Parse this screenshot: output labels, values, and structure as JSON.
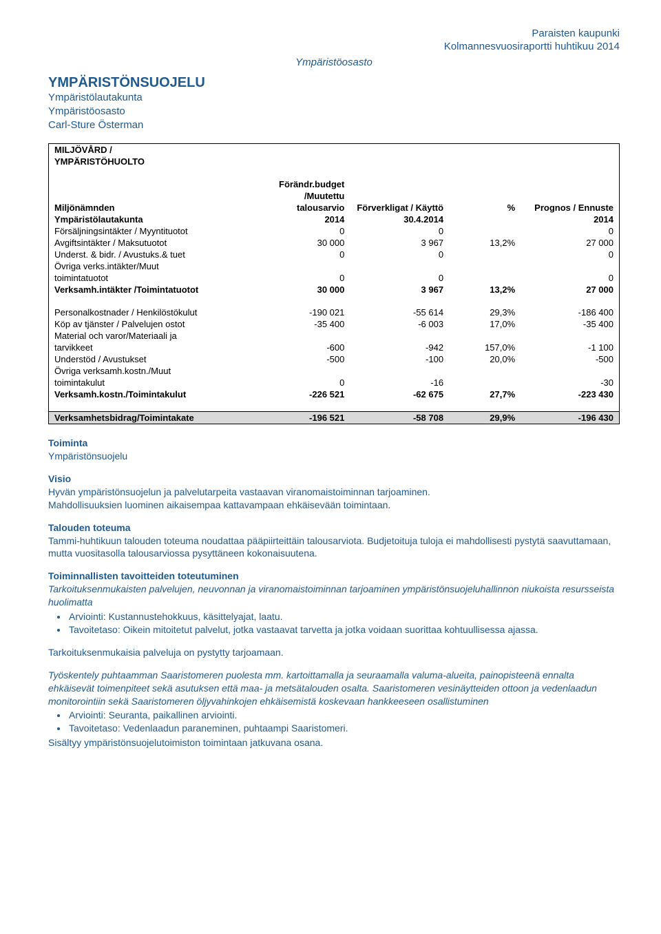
{
  "header": {
    "line1": "Paraisten kaupunki",
    "line2": "Kolmannesvuosiraportti huhtikuu 2014",
    "dept_italic": "Ympäristöosasto"
  },
  "title": "YMPÄRISTÖNSUOJELU",
  "sub1": "Ympäristölautakunta",
  "sub2": "Ympäristöosasto",
  "sub3": "Carl-Sture Österman",
  "table": {
    "section_title_a": "MILJÖVÅRD /",
    "section_title_b": "YMPÄRISTÖHUOLTO",
    "col1a": "Miljönämnden",
    "col1b": "Ympäristölautakunta",
    "col2a": "Förändr.budget",
    "col2b": "/Muutettu",
    "col2c": "talousarvio",
    "col2d": "2014",
    "col3a": "Förverkligat / Käyttö",
    "col3b": "30.4.2014",
    "col4": "%",
    "col5a": "Prognos / Ennuste",
    "col5b": "2014",
    "rows_top": [
      {
        "label": "Försäljningsintäkter / Myyntituotot",
        "c1": "0",
        "c2": "0",
        "c3": "",
        "c4": "0"
      },
      {
        "label": "Avgiftsintäkter / Maksutuotot",
        "c1": "30 000",
        "c2": "3 967",
        "c3": "13,2%",
        "c4": "27 000"
      },
      {
        "label": "Underst. & bidr. / Avustuks.& tuet",
        "c1": "0",
        "c2": "0",
        "c3": "",
        "c4": "0"
      },
      {
        "label": "Övriga verks.intäkter/Muut",
        "c1": "",
        "c2": "",
        "c3": "",
        "c4": ""
      },
      {
        "label": "toimintatuotot",
        "c1": "0",
        "c2": "0",
        "c3": "",
        "c4": "0"
      }
    ],
    "total_top": {
      "label": "Verksamh.intäkter /Toimintatuotot",
      "c1": "30 000",
      "c2": "3 967",
      "c3": "13,2%",
      "c4": "27 000"
    },
    "rows_mid": [
      {
        "label": "Personalkostnader / Henkilöstökulut",
        "c1": "-190 021",
        "c2": "-55 614",
        "c3": "29,3%",
        "c4": "-186 400"
      },
      {
        "label": "Köp av tjänster / Palvelujen ostot",
        "c1": "-35 400",
        "c2": "-6 003",
        "c3": "17,0%",
        "c4": "-35 400"
      },
      {
        "label": "Material och varor/Materiaali ja",
        "c1": "",
        "c2": "",
        "c3": "",
        "c4": ""
      },
      {
        "label": "tarvikkeet",
        "c1": "-600",
        "c2": "-942",
        "c3": "157,0%",
        "c4": "-1 100"
      },
      {
        "label": "Understöd / Avustukset",
        "c1": "-500",
        "c2": "-100",
        "c3": "20,0%",
        "c4": "-500"
      },
      {
        "label": "Övriga verksamh.kostn./Muut",
        "c1": "",
        "c2": "",
        "c3": "",
        "c4": ""
      },
      {
        "label": "toimintakulut",
        "c1": "0",
        "c2": "-16",
        "c3": "",
        "c4": "-30"
      }
    ],
    "total_mid": {
      "label": "Verksamh.kostn./Toimintakulut",
      "c1": "-226 521",
      "c2": "-62 675",
      "c3": "27,7%",
      "c4": "-223 430"
    },
    "summary": {
      "label": "Verksamhetsbidrag/Toimintakate",
      "c1": "-196 521",
      "c2": "-58 708",
      "c3": "29,9%",
      "c4": "-196 430"
    }
  },
  "body": {
    "h_toiminta": "Toiminta",
    "p_toiminta": "Ympäristönsuojelu",
    "h_visio": "Visio",
    "p_visio1": "Hyvän ympäristönsuojelun ja palvelutarpeita vastaavan viranomaistoiminnan tarjoaminen.",
    "p_visio2": "Mahdollisuuksien luominen aikaisempaa kattavampaan ehkäisevään toimintaan.",
    "h_talous": "Talouden toteuma",
    "p_talous": "Tammi-huhtikuun talouden toteuma noudattaa pääpiirteittäin talousarviota. Budjetoituja tuloja ei mahdollisesti pystytä saavuttamaan, mutta vuositasolla talousarviossa pysyttäneen kokonaisuutena.",
    "h_toimin": "Toiminnallisten tavoitteiden toteutuminen",
    "p_italic1": "Tarkoituksenmukaisten palvelujen, neuvonnan ja viranomaistoiminnan tarjoaminen ympäristönsuojeluhallinnon niukoista resursseista huolimatta",
    "bullets1": [
      "Arviointi: Kustannustehokkuus, käsittelyajat, laatu.",
      "Tavoitetaso: Oikein mitoitetut palvelut, jotka vastaavat tarvetta ja jotka voidaan suorittaa kohtuullisessa ajassa."
    ],
    "p_tarjo": "Tarkoituksenmukaisia palveluja on pystytty tarjoamaan.",
    "p_italic2": "Työskentely puhtaamman Saaristomeren puolesta mm. kartoittamalla ja seuraamalla valuma-alueita, painopisteenä ennalta ehkäisevät toimenpiteet sekä asutuksen että maa- ja metsätalouden osalta. Saaristomeren vesinäytteiden ottoon ja vedenlaadun monitorointiin sekä Saaristomeren öljyvahinkojen ehkäisemistä koskevaan hankkeeseen osallistuminen",
    "bullets2": [
      "Arviointi: Seuranta, paikallinen arviointi.",
      "Tavoitetaso: Vedenlaadun paraneminen, puhtaampi Saaristomeri."
    ],
    "p_last": "Sisältyy ympäristönsuojelutoimiston toimintaan jatkuvana osana."
  }
}
